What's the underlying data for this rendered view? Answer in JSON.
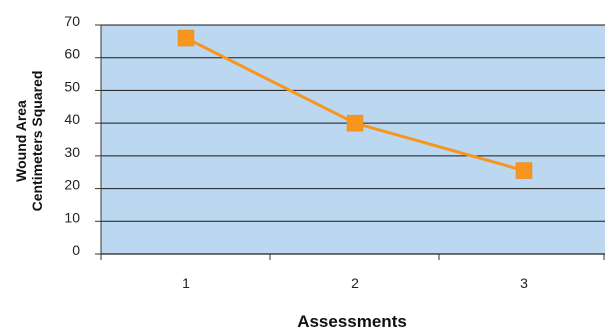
{
  "chart_data": {
    "type": "line",
    "title": "",
    "xlabel": "Assessments",
    "ylabel_lines": [
      "Wound Area",
      "Centimeters Squared"
    ],
    "categories": [
      "1",
      "2",
      "3"
    ],
    "series": [
      {
        "values": [
          66,
          40,
          25.5
        ]
      }
    ],
    "ylim": [
      0,
      70
    ],
    "yticks": [
      "0",
      "10",
      "20",
      "30",
      "40",
      "50",
      "60",
      "70"
    ],
    "grid": true,
    "legend": "none",
    "colors": {
      "plot_background": "#bcd8f1",
      "line": "#f7961f",
      "marker": "#f7961f",
      "gridline": "#1a1a1a"
    },
    "marker": "square-icon"
  }
}
